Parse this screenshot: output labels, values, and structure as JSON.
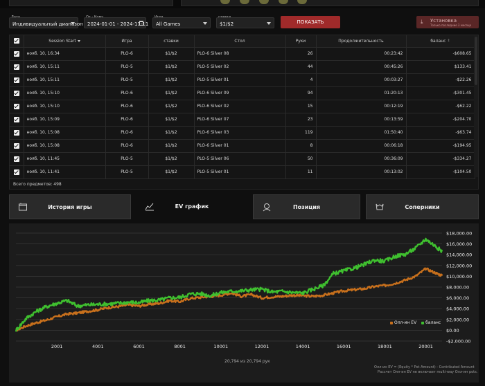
{
  "filters": {
    "date": {
      "label": "Дата",
      "value": "Индивидуальный диапазон"
    },
    "range": {
      "label": "От - Кому",
      "value": "2024-01-01 - 2024-11-11"
    },
    "game": {
      "label": "Игра",
      "value": "All Games"
    },
    "stakes": {
      "label": "ставки",
      "value": "$1/$2"
    },
    "show_button": "ПОКАЗАТЬ",
    "install": {
      "title": "Установка",
      "subtitle": "Только последние 3 месяца"
    }
  },
  "table": {
    "columns": [
      "Session Start",
      "Игра",
      "ставки",
      "Стол",
      "Руки",
      "Продолжительность",
      "баланс"
    ],
    "rows": [
      [
        "нояб. 10, 16:34",
        "PLO-6",
        "$1/$2",
        "PLO-6 Silver 08",
        "26",
        "00:23:42",
        "-$608.65"
      ],
      [
        "нояб. 10, 15:11",
        "PLO-5",
        "$1/$2",
        "PLO-5 Silver 02",
        "44",
        "00:45:26",
        "$133.41"
      ],
      [
        "нояб. 10, 15:11",
        "PLO-5",
        "$1/$2",
        "PLO-5 Silver 01",
        "4",
        "00:03:27",
        "-$22.26"
      ],
      [
        "нояб. 10, 15:10",
        "PLO-6",
        "$1/$2",
        "PLO-6 Silver 09",
        "94",
        "01:20:13",
        "-$301.45"
      ],
      [
        "нояб. 10, 15:10",
        "PLO-6",
        "$1/$2",
        "PLO-6 Silver 02",
        "15",
        "00:12:19",
        "-$62.22"
      ],
      [
        "нояб. 10, 15:09",
        "PLO-6",
        "$1/$2",
        "PLO-6 Silver 07",
        "23",
        "00:13:59",
        "-$204.70"
      ],
      [
        "нояб. 10, 15:08",
        "PLO-6",
        "$1/$2",
        "PLO-6 Silver 03",
        "119",
        "01:50:40",
        "-$63.74"
      ],
      [
        "нояб. 10, 15:08",
        "PLO-6",
        "$1/$2",
        "PLO-6 Silver 01",
        "8",
        "00:06:18",
        "-$194.95"
      ],
      [
        "нояб. 10, 11:45",
        "PLO-5",
        "$1/$2",
        "PLO-5 Silver 06",
        "50",
        "00:36:09",
        "-$334.27"
      ],
      [
        "нояб. 10, 11:41",
        "PLO-5",
        "$1/$2",
        "PLO-5 Silver 01",
        "11",
        "00:13:02",
        "-$104.50"
      ]
    ],
    "total_label": "Всего предметов: 498"
  },
  "tabs": [
    {
      "label": "История игры",
      "icon": "game-history-icon",
      "active": false
    },
    {
      "label": "EV график",
      "icon": "line-chart-icon",
      "active": true
    },
    {
      "label": "Позиция",
      "icon": "position-icon",
      "active": false
    },
    {
      "label": "Соперники",
      "icon": "opponents-icon",
      "active": false
    }
  ],
  "chart": {
    "counter": "20,794 из 20,794 рук",
    "legend": [
      {
        "name": "Олл-ин EV",
        "color": "#c8701c"
      },
      {
        "name": "баланс",
        "color": "#3fbf2f"
      }
    ],
    "footnote_1": "Олл-ин EV = (Equity * Pot Amount) - Contributed Amount",
    "footnote_2": "Рассчет Олл-ин EV не включает multi-way Олл-ин pots."
  },
  "chart_data": {
    "type": "line",
    "x_ticks": [
      2001,
      4001,
      6001,
      8001,
      10001,
      12001,
      14001,
      16001,
      18001,
      20001
    ],
    "y_ticks": [
      -2000,
      0,
      2000,
      4000,
      6000,
      8000,
      10000,
      12000,
      14000,
      16000,
      18000
    ],
    "y_tick_labels": [
      "-$2,000.00",
      "$0.00",
      "$2,000.00",
      "$4,000.00",
      "$6,000.00",
      "$8,000.00",
      "$10,000.00",
      "$12,000.00",
      "$14,000.00",
      "$16,000.00",
      "$18,000.00"
    ],
    "xlim": [
      1,
      20794
    ],
    "ylim": [
      -2000,
      18000
    ],
    "grid": true,
    "legend_position": "bottom-right",
    "series": [
      {
        "name": "Олл-ин EV",
        "color": "#c8701c",
        "x": [
          1,
          500,
          1000,
          1500,
          2000,
          2500,
          3000,
          3500,
          4000,
          4500,
          5000,
          5500,
          6000,
          6500,
          7000,
          7500,
          8000,
          8500,
          9000,
          9500,
          10000,
          10500,
          11000,
          11500,
          12000,
          12500,
          13000,
          13500,
          14000,
          14500,
          15000,
          15500,
          16000,
          16500,
          17000,
          17500,
          18000,
          18500,
          19000,
          19500,
          20000,
          20500,
          20794
        ],
        "values": [
          0,
          800,
          1400,
          1900,
          2500,
          3000,
          3200,
          3500,
          3800,
          4200,
          4400,
          4700,
          4500,
          4800,
          5000,
          5500,
          5300,
          5900,
          6100,
          6300,
          6500,
          6900,
          6300,
          6600,
          6000,
          6200,
          6300,
          6500,
          6400,
          6300,
          6500,
          6900,
          7300,
          7500,
          7700,
          8100,
          8300,
          8700,
          9300,
          10000,
          11400,
          10600,
          10100
        ]
      },
      {
        "name": "баланс",
        "color": "#3fbf2f",
        "x": [
          1,
          500,
          1000,
          1500,
          2000,
          2500,
          3000,
          3500,
          4000,
          4500,
          5000,
          5500,
          6000,
          6500,
          7000,
          7500,
          8000,
          8500,
          9000,
          9500,
          10000,
          10500,
          11000,
          11500,
          12000,
          12500,
          13000,
          13500,
          14000,
          14500,
          15000,
          15500,
          16000,
          16500,
          17000,
          17500,
          18000,
          18500,
          19000,
          19500,
          20000,
          20500,
          20794
        ],
        "values": [
          0,
          2200,
          3500,
          4400,
          5000,
          5500,
          4500,
          4700,
          4800,
          4900,
          5000,
          5200,
          5100,
          5500,
          5600,
          6000,
          6100,
          6700,
          6800,
          6400,
          7000,
          7200,
          7300,
          7500,
          7600,
          7100,
          7200,
          7000,
          6900,
          7600,
          8300,
          10500,
          11000,
          11500,
          12200,
          13000,
          12800,
          13700,
          14100,
          15200,
          16900,
          15500,
          14600
        ]
      }
    ]
  }
}
